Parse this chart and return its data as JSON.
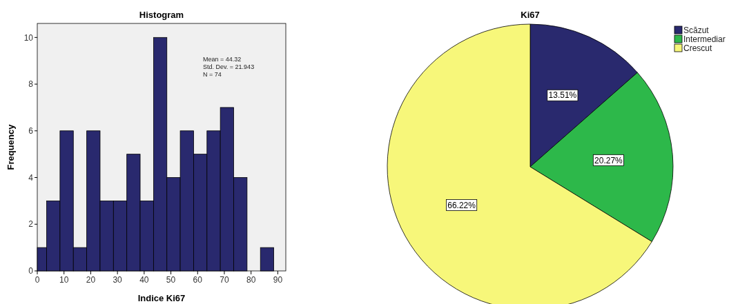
{
  "chart_data": [
    {
      "type": "histogram",
      "title": "Histogram",
      "xlabel": "Indice Ki67",
      "ylabel": "Frequency",
      "bins": [
        0,
        3.5,
        8.5,
        13.5,
        18.5,
        23.5,
        28.5,
        33.5,
        38.5,
        43.5,
        48.5,
        53.5,
        58.5,
        63.5,
        68.5,
        73.5,
        78.5,
        83.5,
        88.5
      ],
      "values": [
        1,
        3,
        6,
        1,
        6,
        3,
        3,
        5,
        3,
        10,
        4,
        6,
        5,
        6,
        7,
        4,
        0,
        1
      ],
      "color": "#29296e",
      "xlim": [
        0,
        93
      ],
      "xticks": [
        0,
        10,
        20,
        30,
        40,
        50,
        60,
        70,
        80,
        90
      ],
      "ylim": [
        0,
        10.6
      ],
      "yticks": [
        0,
        2,
        4,
        6,
        8,
        10
      ],
      "annotations": [
        "Mean = 44.32",
        "Std. Dev. = 21.943",
        "N = 74"
      ]
    },
    {
      "type": "pie",
      "title": "Ki67",
      "categories": [
        "Scăzut",
        "Intermediar",
        "Crescut"
      ],
      "values": [
        13.51,
        20.27,
        66.22
      ],
      "value_labels": [
        "13.51%",
        "20.27%",
        "66.22%"
      ],
      "colors": [
        "#29296e",
        "#2db84a",
        "#f7f77a"
      ],
      "legend": "top right"
    }
  ]
}
